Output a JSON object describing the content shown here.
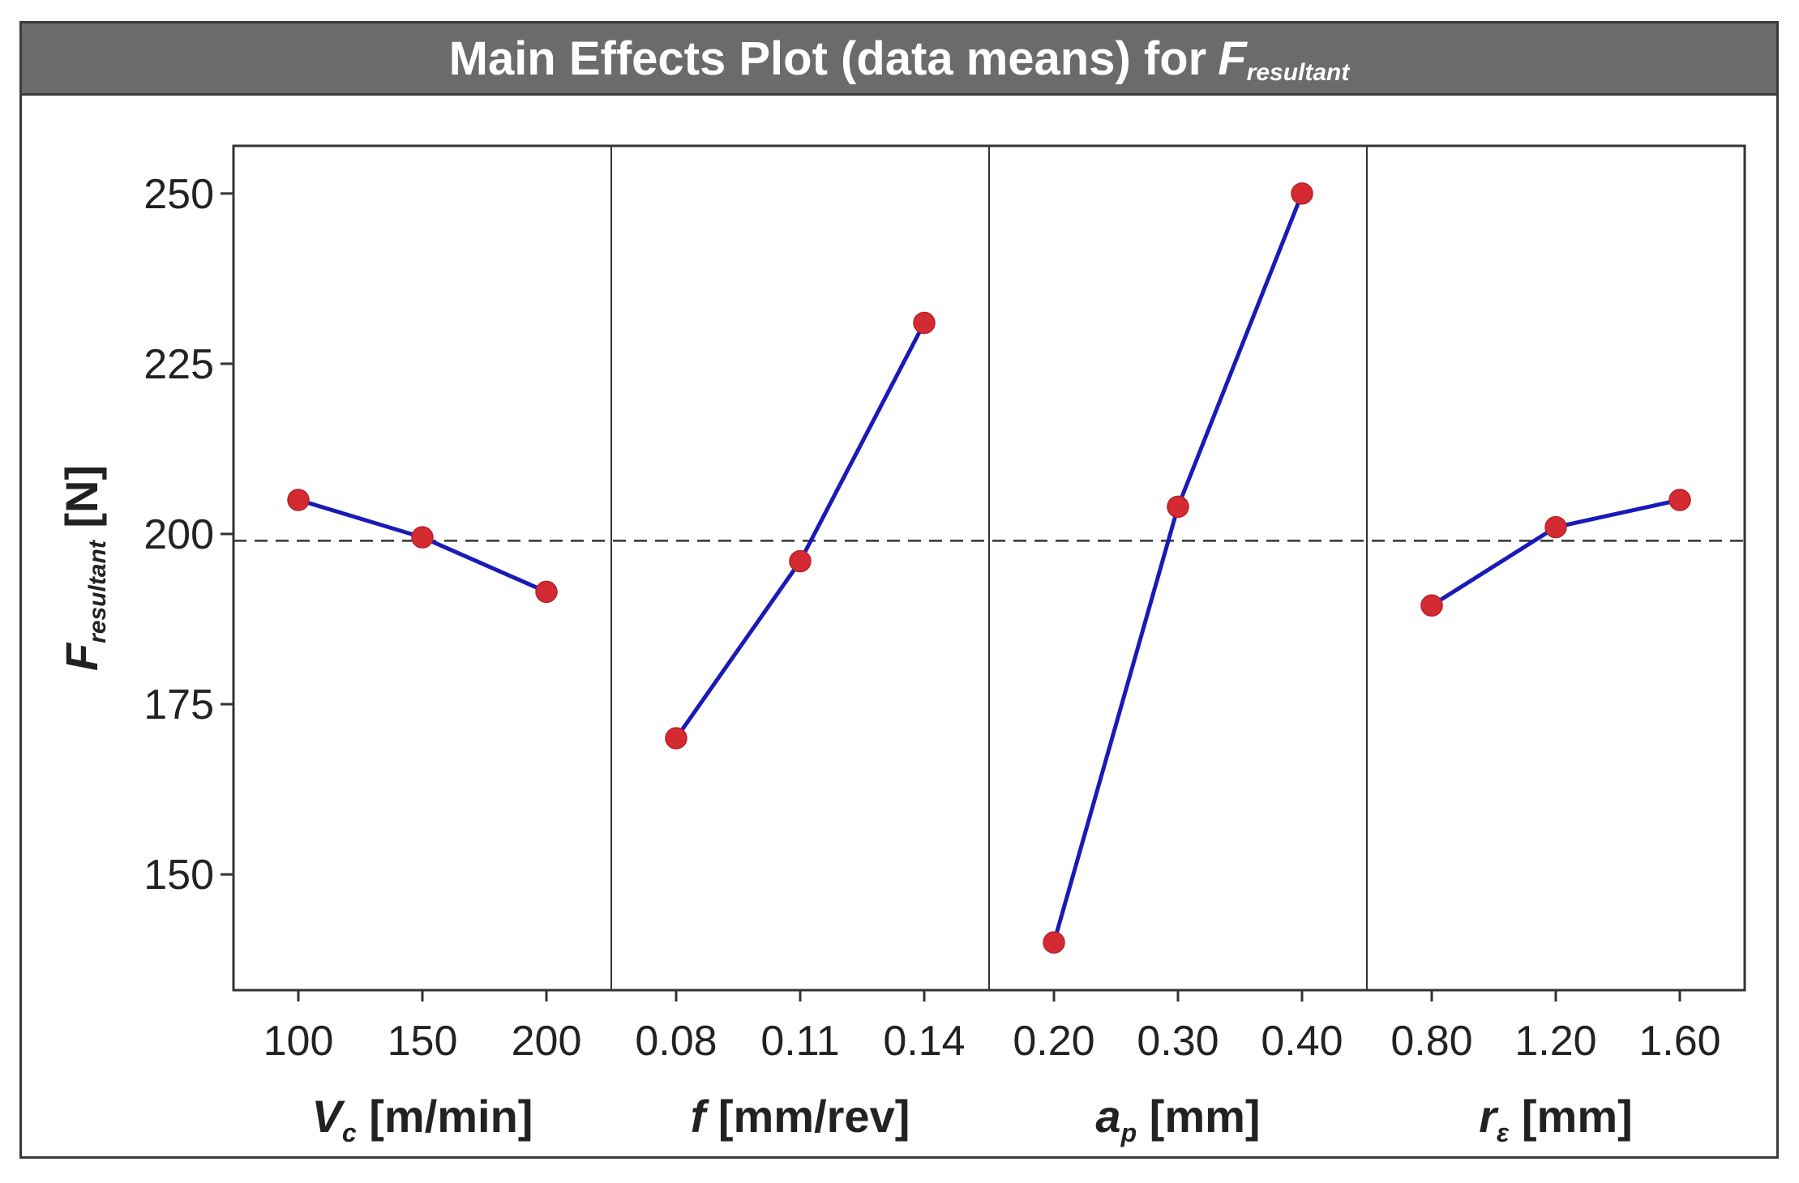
{
  "title": {
    "prefix": "Main Effects Plot (data means) for",
    "symbol": "F",
    "subscript": "resultant"
  },
  "colors": {
    "title_bg": "#6b6b6b",
    "line": "#1a1ab8",
    "marker": "#d42a32",
    "reference": "#333333",
    "axis": "#333333"
  },
  "chart_data": {
    "type": "line",
    "title": "Main Effects Plot (data means) for Fresultant",
    "ylabel": {
      "symbol": "F",
      "subscript": "resultant",
      "unit": " [N]"
    },
    "ylim": [
      133,
      257
    ],
    "yticks": [
      150,
      175,
      200,
      225,
      250
    ],
    "reference_line": 199,
    "panels": [
      {
        "xlabel": {
          "symbol": "V",
          "subscript": "c",
          "unit": " [m/min]"
        },
        "categories": [
          "100",
          "150",
          "200"
        ],
        "values": [
          205,
          199.5,
          191.5
        ]
      },
      {
        "xlabel": {
          "symbol": "f",
          "subscript": "",
          "unit": " [mm/rev]"
        },
        "categories": [
          "0.08",
          "0.11",
          "0.14"
        ],
        "values": [
          170,
          196,
          231
        ]
      },
      {
        "xlabel": {
          "symbol": "a",
          "subscript": "p",
          "unit": " [mm]"
        },
        "categories": [
          "0.20",
          "0.30",
          "0.40"
        ],
        "values": [
          140,
          204,
          250
        ]
      },
      {
        "xlabel": {
          "symbol": "r",
          "subscript": "ε",
          "unit": " [mm]"
        },
        "categories": [
          "0.80",
          "1.20",
          "1.60"
        ],
        "values": [
          189.5,
          201,
          205
        ]
      }
    ]
  }
}
